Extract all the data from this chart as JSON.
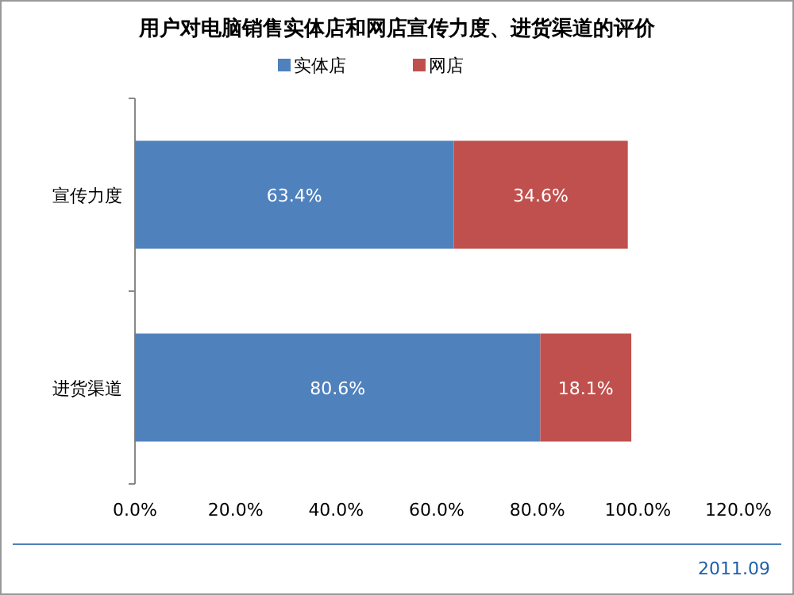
{
  "chart_data": {
    "type": "bar",
    "title": "用户对电脑销售实体店和网店宣传力度、进货渠道的评价",
    "orientation": "horizontal",
    "stacked": true,
    "legend": "top",
    "categories": [
      "宣传力度",
      "进货渠道"
    ],
    "series": [
      {
        "name": "实体店",
        "color": "#4f81bd",
        "values": [
          63.4,
          80.6
        ],
        "value_labels": [
          "63.4%",
          "80.6%"
        ]
      },
      {
        "name": "网店",
        "color": "#c0504d",
        "values": [
          34.6,
          18.1
        ],
        "value_labels": [
          "34.6%",
          "18.1%"
        ]
      }
    ],
    "xlim": [
      0,
      120
    ],
    "xticks": [
      {
        "value": 0,
        "label": "0.0%"
      },
      {
        "value": 20,
        "label": "20.0%"
      },
      {
        "value": 40,
        "label": "40.0%"
      },
      {
        "value": 60,
        "label": "60.0%"
      },
      {
        "value": 80,
        "label": "80.0%"
      },
      {
        "value": 100,
        "label": "100.0%"
      },
      {
        "value": 120,
        "label": "120.0%"
      }
    ],
    "annotations": [
      "2011.09"
    ]
  }
}
